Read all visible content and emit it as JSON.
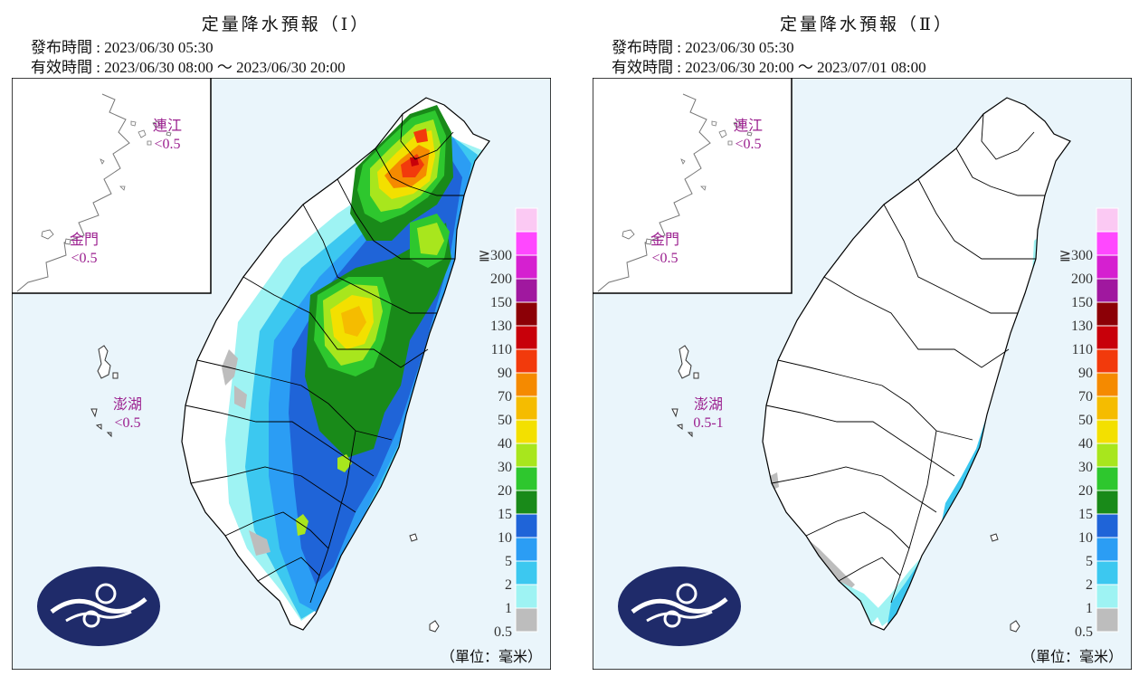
{
  "panels": [
    {
      "title": "定量降水預報（Ⅰ）",
      "issue_label": "發布時間",
      "issue_time": "2023/06/30 05:30",
      "valid_label": "有效時間",
      "valid_time": "2023/06/30 08:00 ～ 2023/06/30 20:00",
      "islands": {
        "matsu": {
          "name": "連江",
          "value": "<0.5"
        },
        "kinmen": {
          "name": "金門",
          "value": "<0.5"
        },
        "penghu": {
          "name": "澎湖",
          "value": "<0.5"
        }
      },
      "unit": "（單位：毫米）"
    },
    {
      "title": "定量降水預報（Ⅱ）",
      "issue_label": "發布時間",
      "issue_time": "2023/06/30 05:30",
      "valid_label": "有效時間",
      "valid_time": "2023/06/30 20:00 ～ 2023/07/01 08:00",
      "islands": {
        "matsu": {
          "name": "連江",
          "value": "<0.5"
        },
        "kinmen": {
          "name": "金門",
          "value": "<0.5"
        },
        "penghu": {
          "name": "澎湖",
          "value": "0.5-1"
        }
      },
      "unit": "（單位：毫米）"
    }
  ],
  "legend": {
    "levels": [
      "0.5",
      "1",
      "2",
      "5",
      "10",
      "15",
      "20",
      "30",
      "40",
      "50",
      "70",
      "90",
      "110",
      "130",
      "150",
      "200",
      "≧300"
    ],
    "colors": [
      "#bdbdbd",
      "#9ef3f3",
      "#3cc8f0",
      "#2b9df4",
      "#1f64d8",
      "#198a19",
      "#2ec72e",
      "#a8e61d",
      "#f3e000",
      "#f5bc00",
      "#f58a00",
      "#f23a0c",
      "#c8000a",
      "#8c0006",
      "#a0189f",
      "#d520d0",
      "#ff48ff",
      "#fbc9f3"
    ]
  },
  "colors": {
    "sea": "#eaf5fb",
    "land": "#ffffff",
    "label_purple": "#9b1f8f",
    "logo_navy": "#1f2b6a",
    "border": "#000000"
  }
}
